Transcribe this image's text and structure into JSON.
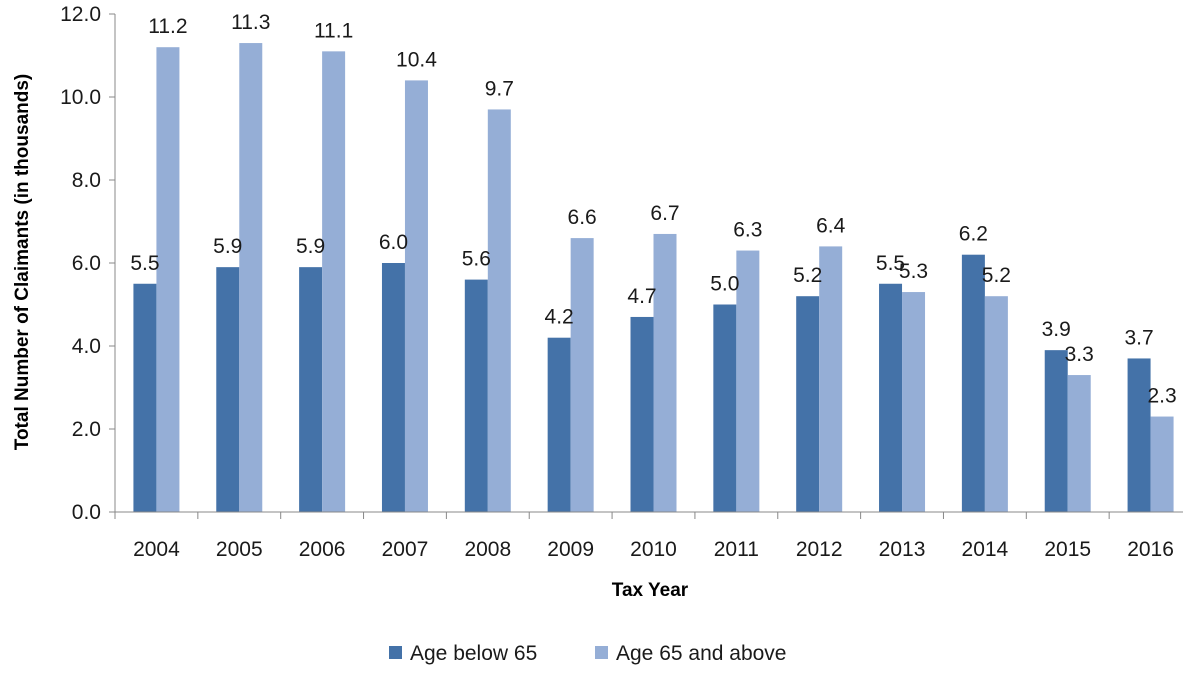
{
  "chart_data": {
    "type": "bar",
    "title": "",
    "xlabel": "Tax Year",
    "ylabel": "Total Number of Claimants (in thousands)",
    "ylim": [
      0,
      12
    ],
    "yticks": [
      "0.0",
      "2.0",
      "4.0",
      "6.0",
      "8.0",
      "10.0",
      "12.0"
    ],
    "grid": false,
    "legend_position": "bottom",
    "categories": [
      "2004",
      "2005",
      "2006",
      "2007",
      "2008",
      "2009",
      "2010",
      "2011",
      "2012",
      "2013",
      "2014",
      "2015",
      "2016"
    ],
    "series": [
      {
        "name": "Age below 65",
        "color": "#4472a8",
        "values": [
          5.5,
          5.9,
          5.9,
          6.0,
          5.6,
          4.2,
          4.7,
          5.0,
          5.2,
          5.5,
          6.2,
          3.9,
          3.7
        ],
        "labels": [
          "5.5",
          "5.9",
          "5.9",
          "6.0",
          "5.6",
          "4.2",
          "4.7",
          "5.0",
          "5.2",
          "5.5",
          "6.2",
          "3.9",
          "3.7"
        ]
      },
      {
        "name": "Age 65 and above",
        "color": "#95aed6",
        "values": [
          11.2,
          11.3,
          11.1,
          10.4,
          9.7,
          6.6,
          6.7,
          6.3,
          6.4,
          5.3,
          5.2,
          3.3,
          2.3
        ],
        "labels": [
          "11.2",
          "11.3",
          "11.1",
          "10.4",
          "9.7",
          "6.6",
          "6.7",
          "6.3",
          "6.4",
          "5.3",
          "5.2",
          "3.3",
          "2.3"
        ]
      }
    ]
  }
}
